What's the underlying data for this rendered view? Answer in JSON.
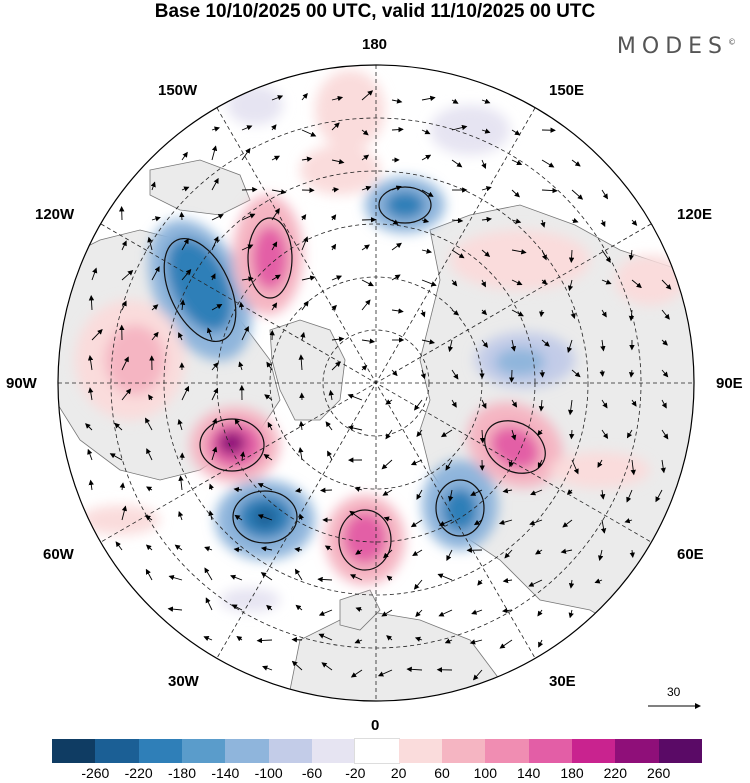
{
  "title": "Base 10/10/2025 00 UTC, valid 11/10/2025 00 UTC",
  "brand": {
    "name": "MODES",
    "mark": "©"
  },
  "longitude_labels": {
    "top": "180",
    "bottom": "0",
    "left": "90W",
    "right": "90E",
    "w150": "150W",
    "e150": "150E",
    "w120": "120W",
    "e120": "120E",
    "w60": "60W",
    "e60": "60E",
    "w30": "30W",
    "e30": "30E"
  },
  "vector_scale": {
    "value": "30"
  },
  "colorbar": {
    "colors": [
      "#0f3c63",
      "#1b5f95",
      "#2f7fb8",
      "#5a9ccb",
      "#8fb5dc",
      "#c3cce8",
      "#e6e4f2",
      "#ffffff",
      "#fadcdc",
      "#f5b5c2",
      "#f08db2",
      "#e35ea6",
      "#c9238f",
      "#8f0f79",
      "#5a0a66"
    ],
    "ticks": [
      "-260",
      "-220",
      "-180",
      "-140",
      "-100",
      "-60",
      "-20",
      "20",
      "60",
      "100",
      "140",
      "180",
      "220",
      "260"
    ]
  },
  "legend_meaning": {
    "positive": "#f08db2",
    "negative": "#2f7fb8"
  }
}
